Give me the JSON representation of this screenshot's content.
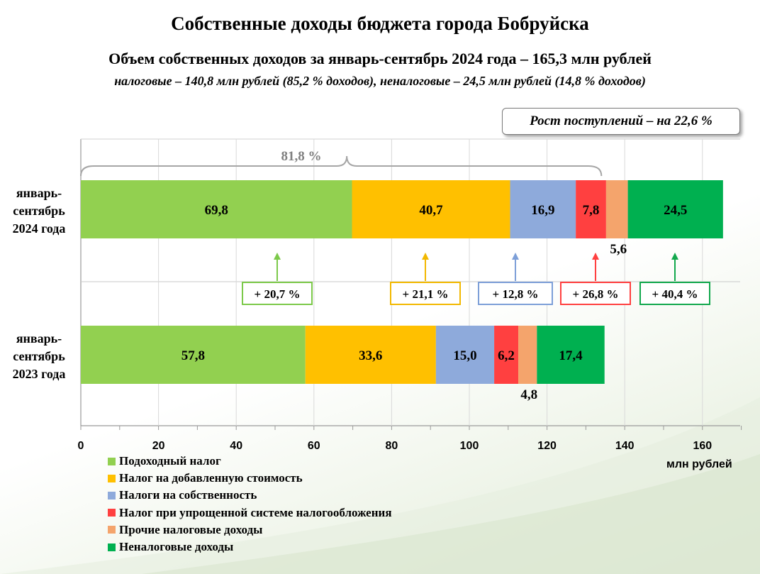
{
  "header": {
    "title": "Собственные доходы бюджета города Бобруйска",
    "subtitle": "Объем собственных доходов за январь-сентябрь 2024 года – 165,3 млн рублей",
    "subtitle2": "налоговые – 140,8 млн рублей (85,2 % доходов), неналоговые – 24,5 млн рублей (14,8 % доходов)"
  },
  "growth_box": {
    "label": "Рост поступлений – на 22,6 %"
  },
  "chart_data": {
    "type": "bar",
    "orientation": "horizontal",
    "stacked": true,
    "categories": [
      [
        "январь-",
        "сентябрь",
        "2024 года"
      ],
      [
        "январь-",
        "сентябрь",
        "2023 года"
      ]
    ],
    "series": [
      {
        "name": "Подоходный налог",
        "color": "#92d050",
        "values": [
          69.8,
          57.8
        ],
        "labels": [
          "69,8",
          "57,8"
        ],
        "change": "+ 20,7 %"
      },
      {
        "name": "Налог на добавленную стоимость",
        "color": "#ffc000",
        "values": [
          40.7,
          33.6
        ],
        "labels": [
          "40,7",
          "33,6"
        ],
        "change": "+ 21,1 %"
      },
      {
        "name": "Налоги на собственность",
        "color": "#8eaadb",
        "values": [
          16.9,
          15.0
        ],
        "labels": [
          "16,9",
          "15,0"
        ],
        "change": "+ 12,8 %"
      },
      {
        "name": "Налог при упрощенной системе налогообложения",
        "color": "#ff4040",
        "values": [
          7.8,
          6.2
        ],
        "labels": [
          "7,8",
          "6,2"
        ],
        "change": "+ 26,8 %"
      },
      {
        "name": "Прочие налоговые доходы",
        "color": "#f4a46c",
        "values": [
          5.6,
          4.8
        ],
        "labels": [
          "5,6",
          "4,8"
        ],
        "change": ""
      },
      {
        "name": "Неналоговые доходы",
        "color": "#00b050",
        "values": [
          24.5,
          17.4
        ],
        "labels": [
          "24,5",
          "17,4"
        ],
        "change": "+ 40,4 %"
      }
    ],
    "change_colors": [
      "#7cc94a",
      "#f2b800",
      "#7d9fd8",
      "#ff4040",
      "",
      "#12a84d"
    ],
    "brace_label": "81,8 %",
    "brace_to": 134.0,
    "xlim": [
      0,
      170
    ],
    "xticks": [
      "0",
      "20",
      "40",
      "60",
      "80",
      "100",
      "120",
      "140",
      "160"
    ],
    "xtick_values": [
      0,
      20,
      40,
      60,
      80,
      100,
      120,
      140,
      160
    ],
    "xlabel": "млн рублей",
    "grid": true
  }
}
